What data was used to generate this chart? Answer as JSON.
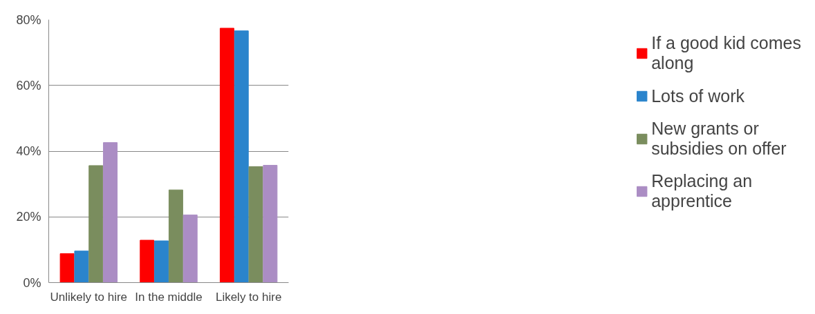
{
  "chart_data": {
    "type": "bar",
    "categories": [
      "Unlikely to hire",
      "In the middle",
      "Likely to hire"
    ],
    "series": [
      {
        "name": "If a good kid comes along",
        "color": "#fe0000",
        "values": [
          8.8,
          12.9,
          77.4
        ]
      },
      {
        "name": "Lots of work",
        "color": "#2a84cc",
        "values": [
          9.6,
          12.7,
          76.6
        ]
      },
      {
        "name": "New grants or subsidies on offer",
        "color": "#7a8d5e",
        "values": [
          35.6,
          28.2,
          35.3
        ]
      },
      {
        "name": "Replacing an apprentice",
        "color": "#ab8dc4",
        "values": [
          42.6,
          20.6,
          35.7
        ]
      }
    ],
    "ylim": [
      0,
      80
    ],
    "yticks": [
      {
        "value": 0,
        "label": "0%"
      },
      {
        "value": 20,
        "label": "20%"
      },
      {
        "value": 40,
        "label": "40%"
      },
      {
        "value": 60,
        "label": "60%"
      },
      {
        "value": 80,
        "label": "80%"
      }
    ],
    "grid": "y",
    "legend": "right"
  }
}
